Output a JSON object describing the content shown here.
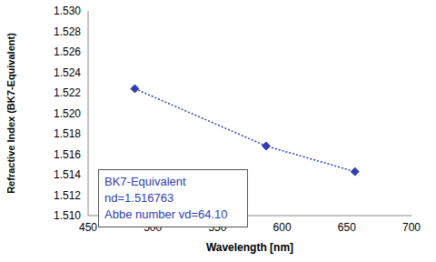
{
  "chart_data": {
    "type": "line",
    "x_label": "Wavelength [nm]",
    "y_label": "Refractive Index (BK7-Equivalent)",
    "annotations": [
      "BK7-Equivalent",
      "nd=1.516763",
      "Abbe number vd=64.10"
    ],
    "x": [
      486.1,
      587.6,
      656.3
    ],
    "series": [
      {
        "name": "BK7-Equivalent",
        "color": "#3040b0",
        "marker": "diamond",
        "line_style": "dotted",
        "values": [
          1.5224,
          1.5168,
          1.5143
        ]
      }
    ],
    "xlim": [
      450,
      700
    ],
    "xticks": [
      450,
      500,
      550,
      600,
      650,
      700
    ],
    "ylim": [
      1.51,
      1.53
    ],
    "yticks": [
      {
        "value": 1.51,
        "label": "1.510"
      },
      1.512,
      1.514,
      1.516,
      1.518,
      {
        "value": 1.52,
        "label": "1.520"
      },
      1.522,
      1.524,
      1.526,
      1.528,
      {
        "value": 1.53,
        "label": "1.530"
      }
    ],
    "grid": false
  }
}
